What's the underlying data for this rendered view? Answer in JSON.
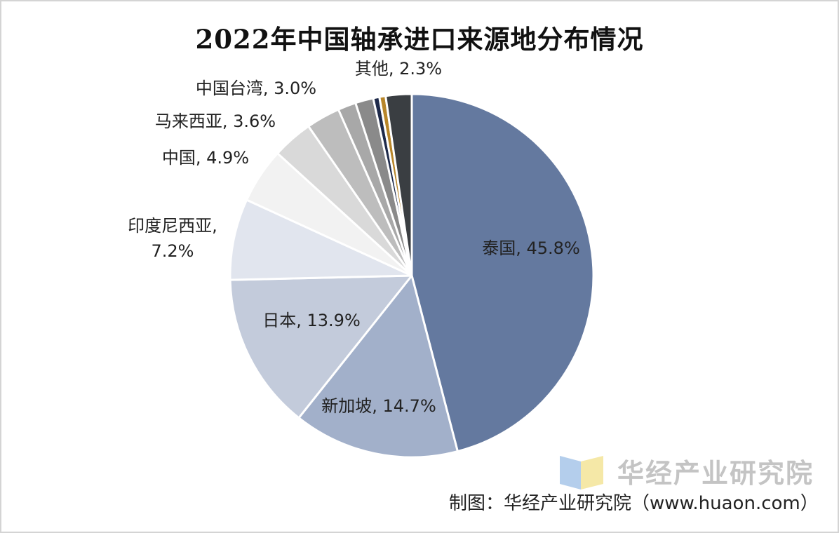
{
  "chart_data": {
    "type": "pie",
    "title": "2022年中国轴承进口来源地分布情况",
    "slices": [
      {
        "name": "泰国",
        "value": 45.8,
        "label": "泰国, 45.8%",
        "color": "#64799f"
      },
      {
        "name": "新加坡",
        "value": 14.7,
        "label": "新加坡, 14.7%",
        "color": "#a2b0ca"
      },
      {
        "name": "日本",
        "value": 13.9,
        "label": "日本, 13.9%",
        "color": "#c3cbdb"
      },
      {
        "name": "印度尼西亚",
        "value": 7.2,
        "label": "印度尼西亚,",
        "label2": "7.2%",
        "color": "#e1e5ee"
      },
      {
        "name": "中国",
        "value": 4.9,
        "label": "中国, 4.9%",
        "color": "#f2f2f2"
      },
      {
        "name": "马来西亚",
        "value": 3.6,
        "label": "马来西亚, 3.6%",
        "color": "#d9d9d9"
      },
      {
        "name": "中国台湾",
        "value": 3.0,
        "label": "中国台湾, 3.0%",
        "color": "#bdbdbd"
      },
      {
        "name": "",
        "value": 1.6,
        "label": "",
        "color": "#a8a8a8"
      },
      {
        "name": "",
        "value": 1.6,
        "label": "",
        "color": "#8a8a8a"
      },
      {
        "name": "",
        "value": 0.55,
        "label": "",
        "color": "#1e2a4a"
      },
      {
        "name": "",
        "value": 0.55,
        "label": "",
        "color": "#b8862a"
      },
      {
        "name": "其他",
        "value": 2.3,
        "label": "其他, 2.3%",
        "color": "#3a3e42"
      }
    ],
    "legend": "none"
  },
  "watermark": {
    "text": "华经产业研究院",
    "logo_colors": [
      "#9bbde6",
      "#f2e08a"
    ]
  },
  "source": "制图：华经产业研究院（www.huaon.com）"
}
